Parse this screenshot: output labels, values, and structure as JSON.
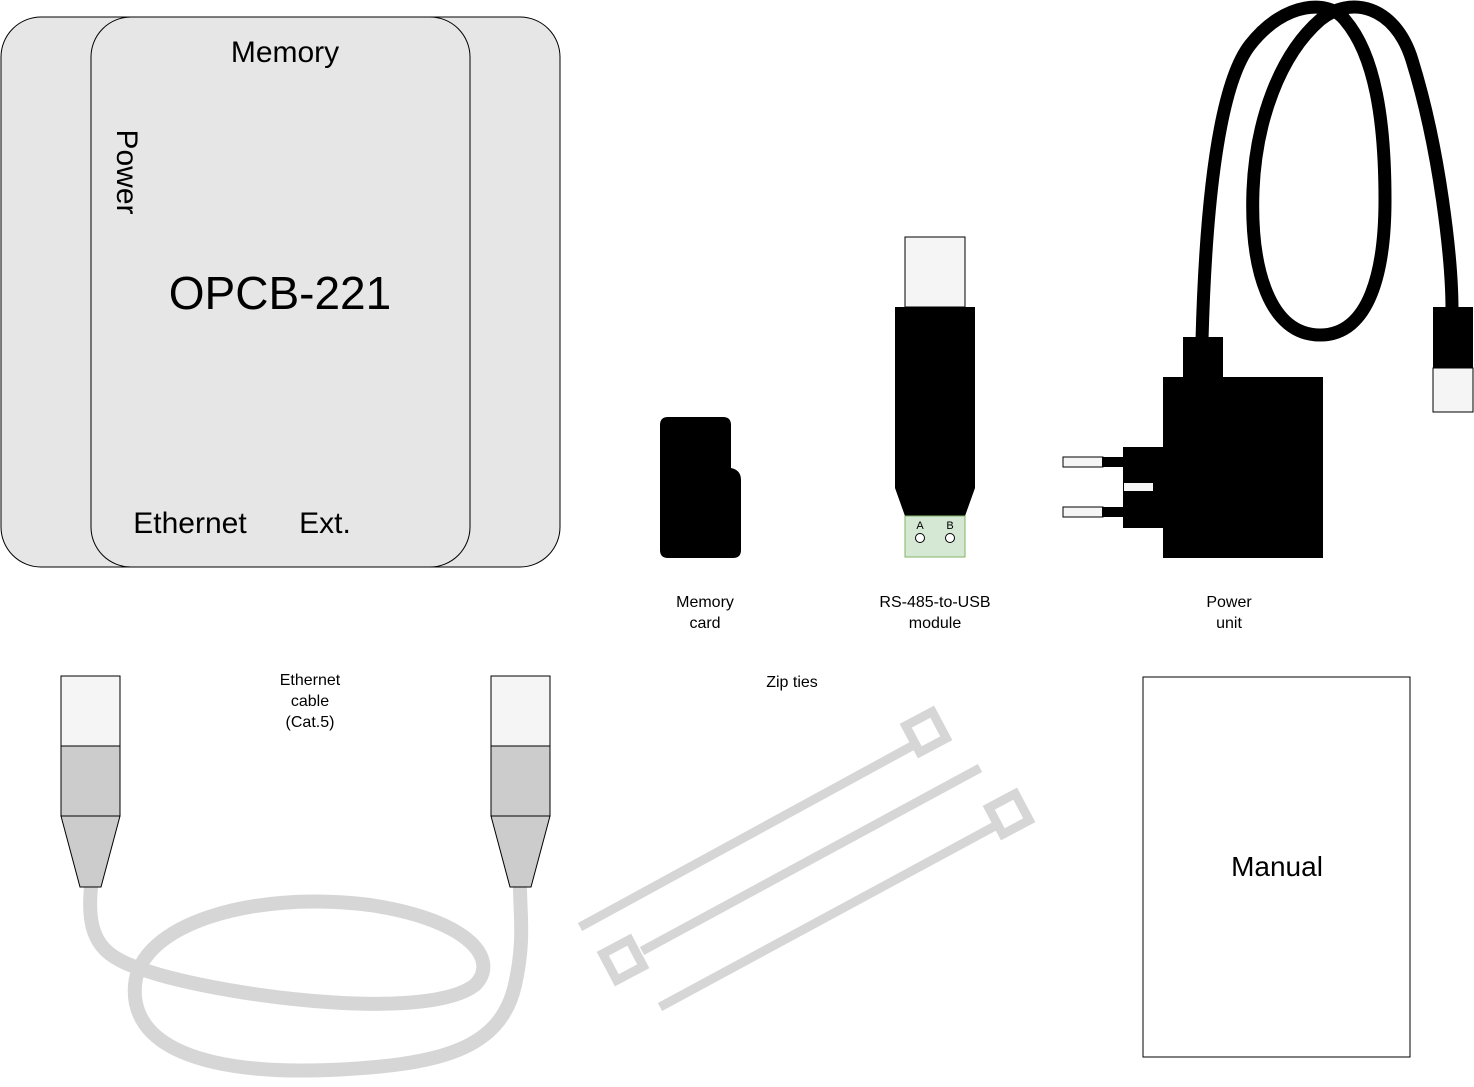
{
  "device": {
    "model": "OPCB-221",
    "ports": {
      "memory": "Memory",
      "power": "Power",
      "ethernet": "Ethernet",
      "ext": "Ext."
    }
  },
  "items": {
    "memory_card": {
      "line1": "Memory",
      "line2": "card"
    },
    "rs485_module": {
      "line1": "RS-485-to-USB",
      "line2": "module",
      "pin_a": "A",
      "pin_b": "B"
    },
    "power_unit": {
      "line1": "Power",
      "line2": "unit"
    },
    "ethernet_cable": {
      "line1": "Ethernet",
      "line2": "cable",
      "line3": "(Cat.5)"
    },
    "zip_ties": {
      "label": "Zip ties"
    },
    "manual": {
      "label": "Manual"
    }
  },
  "colors": {
    "device_fill": "#e6e6e6",
    "cable_gray": "#d6d6d6",
    "connector_light": "#f5f5f5",
    "connector_mid": "#cccccc",
    "terminal_green": "#d5e8d4",
    "black": "#000000"
  }
}
